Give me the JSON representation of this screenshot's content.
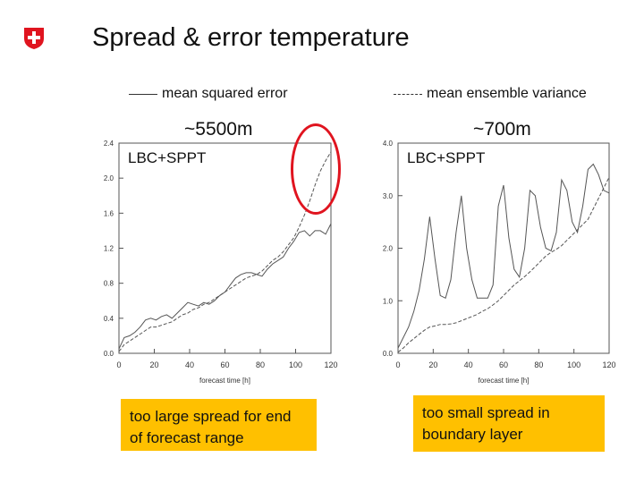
{
  "page": {
    "title": "Spread & error temperature"
  },
  "legend": {
    "solid_label": "mean squared error",
    "dashed_label": "mean ensemble variance"
  },
  "annotations": {
    "left_height": "~5500m",
    "right_height": "~700m",
    "left_note": "too large spread for end of forecast range",
    "right_note": "too small spread in boundary layer",
    "highlight_color": "#e0141f",
    "note_color": "#ffc000"
  },
  "chart_data": [
    {
      "type": "line",
      "label": "LBC+SPPT",
      "xlabel": "forecast time [h]",
      "xlim": [
        0,
        120
      ],
      "ylim": [
        0,
        2.4
      ],
      "xticks": [
        "0",
        "20",
        "40",
        "60",
        "80",
        "100",
        "120"
      ],
      "yticks": [
        "0.0",
        "0.4",
        "0.8",
        "1.2",
        "1.6",
        "2.0",
        "2.4"
      ],
      "x": [
        0,
        3,
        6,
        9,
        12,
        15,
        18,
        21,
        24,
        27,
        30,
        33,
        36,
        39,
        42,
        45,
        48,
        51,
        54,
        57,
        60,
        63,
        66,
        69,
        72,
        75,
        78,
        81,
        84,
        87,
        90,
        93,
        96,
        99,
        102,
        105,
        108,
        111,
        114,
        117,
        120
      ],
      "series": [
        {
          "style": "solid",
          "values": [
            0.05,
            0.18,
            0.2,
            0.24,
            0.3,
            0.38,
            0.4,
            0.38,
            0.42,
            0.44,
            0.4,
            0.46,
            0.52,
            0.58,
            0.56,
            0.54,
            0.58,
            0.56,
            0.6,
            0.66,
            0.7,
            0.78,
            0.86,
            0.9,
            0.92,
            0.92,
            0.9,
            0.88,
            0.96,
            1.02,
            1.06,
            1.1,
            1.2,
            1.28,
            1.38,
            1.4,
            1.34,
            1.4,
            1.4,
            1.36,
            1.48
          ]
        },
        {
          "style": "dashed",
          "values": [
            0.02,
            0.1,
            0.14,
            0.18,
            0.22,
            0.26,
            0.3,
            0.3,
            0.32,
            0.34,
            0.36,
            0.4,
            0.44,
            0.46,
            0.5,
            0.52,
            0.56,
            0.58,
            0.62,
            0.66,
            0.7,
            0.74,
            0.78,
            0.82,
            0.86,
            0.88,
            0.9,
            0.94,
            1.0,
            1.06,
            1.1,
            1.16,
            1.24,
            1.32,
            1.44,
            1.58,
            1.74,
            1.92,
            2.08,
            2.2,
            2.3
          ]
        }
      ]
    },
    {
      "type": "line",
      "label": "LBC+SPPT",
      "xlabel": "forecast time [h]",
      "xlim": [
        0,
        120
      ],
      "ylim": [
        0,
        4.0
      ],
      "xticks": [
        "0",
        "20",
        "40",
        "60",
        "80",
        "100",
        "120"
      ],
      "yticks": [
        "0.0",
        "1.0",
        "2.0",
        "3.0",
        "4.0"
      ],
      "x": [
        0,
        3,
        6,
        9,
        12,
        15,
        18,
        21,
        24,
        27,
        30,
        33,
        36,
        39,
        42,
        45,
        48,
        51,
        54,
        57,
        60,
        63,
        66,
        69,
        72,
        75,
        78,
        81,
        84,
        87,
        90,
        93,
        96,
        99,
        102,
        105,
        108,
        111,
        114,
        117,
        120
      ],
      "series": [
        {
          "style": "solid",
          "values": [
            0.1,
            0.3,
            0.5,
            0.8,
            1.2,
            1.8,
            2.6,
            1.8,
            1.1,
            1.05,
            1.4,
            2.3,
            3.0,
            2.0,
            1.4,
            1.05,
            1.05,
            1.05,
            1.3,
            2.8,
            3.2,
            2.2,
            1.6,
            1.45,
            2.0,
            3.1,
            3.0,
            2.4,
            2.0,
            1.95,
            2.3,
            3.3,
            3.1,
            2.5,
            2.3,
            2.8,
            3.5,
            3.6,
            3.4,
            3.1,
            3.05
          ]
        },
        {
          "style": "dashed",
          "values": [
            0.02,
            0.1,
            0.2,
            0.28,
            0.36,
            0.44,
            0.5,
            0.52,
            0.55,
            0.55,
            0.56,
            0.58,
            0.62,
            0.66,
            0.7,
            0.74,
            0.8,
            0.85,
            0.92,
            1.0,
            1.1,
            1.2,
            1.3,
            1.38,
            1.46,
            1.55,
            1.65,
            1.75,
            1.85,
            1.92,
            1.98,
            2.05,
            2.15,
            2.25,
            2.35,
            2.45,
            2.55,
            2.75,
            2.95,
            3.15,
            3.35
          ]
        }
      ]
    }
  ]
}
